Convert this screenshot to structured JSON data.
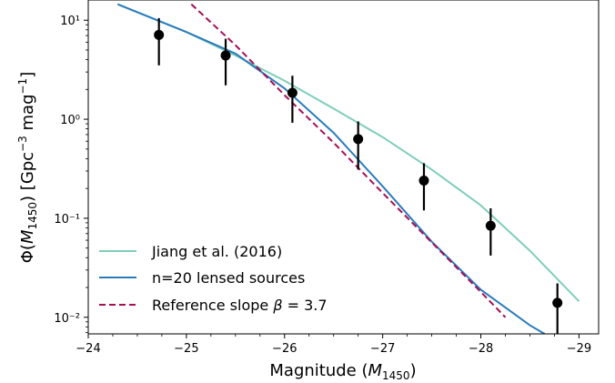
{
  "chart_data": {
    "type": "line",
    "x_scale": "linear",
    "x_inverted": true,
    "xlim": [
      -24.0,
      -29.2
    ],
    "xticks": [
      -24,
      -25,
      -26,
      -27,
      -28,
      -29
    ],
    "xtick_labels": [
      "−24",
      "−25",
      "−26",
      "−27",
      "−28",
      "−29"
    ],
    "xlabel": "Magnitude ($M_{1450}$)",
    "y_scale": "log",
    "ylim": [
      0.0068,
      16
    ],
    "yticks": [
      0.01,
      0.1,
      1,
      10
    ],
    "ytick_labels": [
      "10⁻²",
      "10⁻¹",
      "10⁰",
      "10¹"
    ],
    "ylabel": "Φ(M₁₄₅₀) [Gpc⁻³ mag⁻¹]",
    "grid": false,
    "legend_position": "lower-left",
    "series": [
      {
        "name": "Jiang et al. (2016)",
        "kind": "line",
        "color": "#7fcdbb",
        "dash": "solid",
        "x": [
          -24.3,
          -25.0,
          -25.5,
          -26.0,
          -26.5,
          -27.0,
          -27.5,
          -28.0,
          -28.5,
          -29.0
        ],
        "y": [
          14.5,
          7.6,
          4.4,
          2.45,
          1.28,
          0.66,
          0.31,
          0.135,
          0.047,
          0.0145
        ]
      },
      {
        "name": "n=20 lensed sources",
        "kind": "line",
        "color": "#2b7bba",
        "dash": "solid",
        "x": [
          -24.3,
          -25.0,
          -25.5,
          -26.0,
          -26.5,
          -27.0,
          -27.5,
          -28.0,
          -28.5,
          -28.65
        ],
        "y": [
          14.5,
          7.6,
          4.6,
          2.05,
          0.73,
          0.21,
          0.058,
          0.019,
          0.0083,
          0.0068
        ]
      },
      {
        "name": "Reference slope $\\beta = 3.7$",
        "kind": "line",
        "color": "#a50f55",
        "dash": "dashed",
        "x": [
          -25.05,
          -25.5,
          -26.0,
          -26.5,
          -27.0,
          -27.5,
          -28.0,
          -28.25
        ],
        "y": [
          14.5,
          5.6,
          1.75,
          0.58,
          0.18,
          0.057,
          0.018,
          0.01
        ]
      },
      {
        "kind": "errorbar",
        "color": "#000000",
        "x": [
          -24.72,
          -25.4,
          -26.08,
          -26.75,
          -27.42,
          -28.1,
          -28.78
        ],
        "y": [
          7.1,
          4.4,
          1.85,
          0.63,
          0.24,
          0.084,
          0.014
        ],
        "y_low": [
          3.5,
          2.2,
          0.92,
          0.31,
          0.12,
          0.042,
          0.0062
        ],
        "y_high": [
          10.5,
          6.5,
          2.75,
          0.95,
          0.36,
          0.126,
          0.022
        ]
      }
    ]
  }
}
